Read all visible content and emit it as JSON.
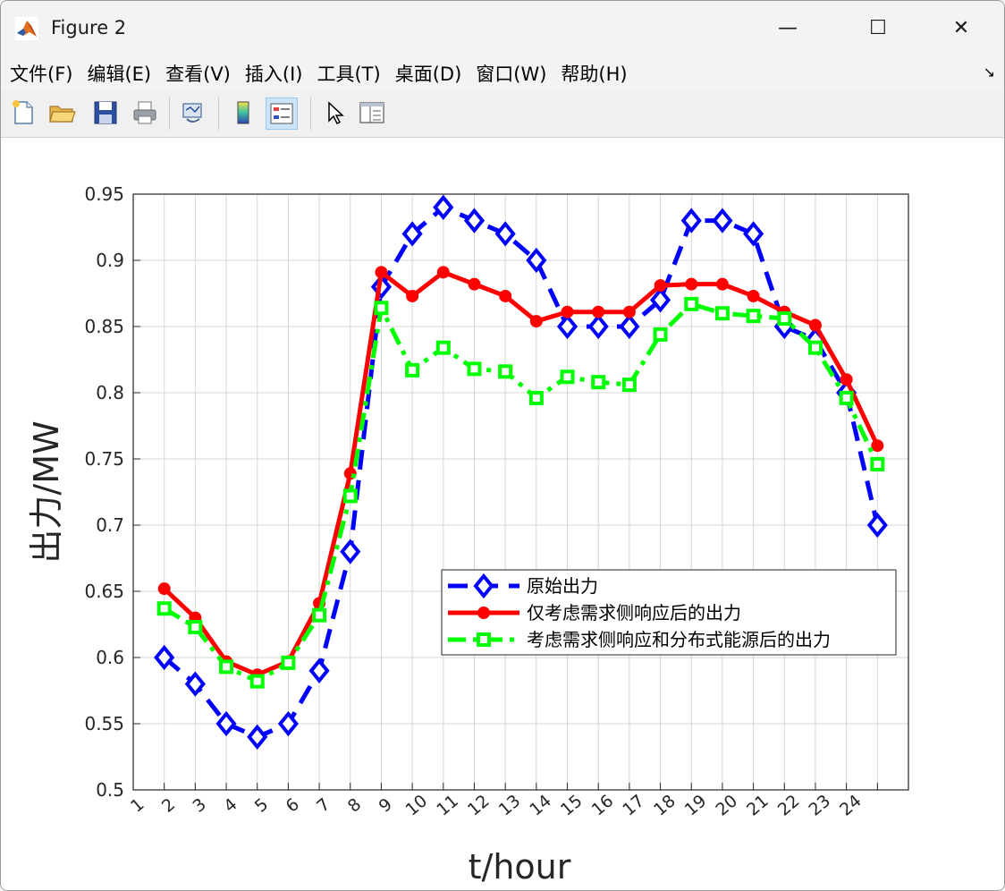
{
  "window": {
    "title": "Figure 2",
    "controls": {
      "minimize": "—",
      "maximize": "☐",
      "close": "✕"
    }
  },
  "menu": [
    {
      "label": "文件(F)"
    },
    {
      "label": "编辑(E)"
    },
    {
      "label": "查看(V)"
    },
    {
      "label": "插入(I)"
    },
    {
      "label": "工具(T)"
    },
    {
      "label": "桌面(D)"
    },
    {
      "label": "窗口(W)"
    },
    {
      "label": "帮助(H)"
    }
  ],
  "menu_overflow": "↘",
  "toolbar": [
    "new-file-icon",
    "open-folder-icon",
    "save-icon",
    "print-icon",
    "link-plot-icon",
    "colorbar-icon",
    "legend-icon",
    "pointer-icon",
    "property-inspector-icon"
  ],
  "chart_data": {
    "type": "line",
    "title": "",
    "xlabel": "t/hour",
    "ylabel": "出力/MW",
    "xlim": [
      0,
      25
    ],
    "ylim": [
      0.5,
      0.95
    ],
    "x_tick_values": [
      1,
      2,
      3,
      4,
      5,
      6,
      7,
      8,
      9,
      10,
      11,
      12,
      13,
      14,
      15,
      16,
      17,
      18,
      19,
      20,
      21,
      22,
      23,
      24
    ],
    "x_tick_labels": [
      "1",
      "2",
      "3",
      "4",
      "5",
      "6",
      "7",
      "8",
      "9",
      "10",
      "11",
      "12",
      "13",
      "14",
      "15",
      "16",
      "17",
      "18",
      "19",
      "20",
      "21",
      "22",
      "23",
      "24"
    ],
    "y_ticks": [
      0.5,
      0.55,
      0.6,
      0.65,
      0.7,
      0.75,
      0.8,
      0.85,
      0.9,
      0.95
    ],
    "y_tick_labels": [
      "0.5",
      "0.55",
      "0.6",
      "0.65",
      "0.7",
      "0.75",
      "0.8",
      "0.85",
      "0.9",
      "0.95"
    ],
    "grid": true,
    "legend_position": "lower-right",
    "x": [
      1,
      2,
      3,
      4,
      5,
      6,
      7,
      8,
      9,
      10,
      11,
      12,
      13,
      14,
      15,
      16,
      17,
      18,
      19,
      20,
      21,
      22,
      23,
      24
    ],
    "series": [
      {
        "name": "原始出力",
        "color": "#0000ff",
        "line": "dashed",
        "marker": "diamond",
        "values": [
          0.6,
          0.58,
          0.55,
          0.54,
          0.55,
          0.59,
          0.68,
          0.88,
          0.92,
          0.94,
          0.93,
          0.92,
          0.9,
          0.85,
          0.85,
          0.85,
          0.87,
          0.93,
          0.93,
          0.92,
          0.85,
          0.84,
          0.8,
          0.7
        ]
      },
      {
        "name": "仅考虑需求侧响应后的出力",
        "color": "#ff0000",
        "line": "solid",
        "marker": "circle",
        "values": [
          0.652,
          0.63,
          0.597,
          0.587,
          0.597,
          0.641,
          0.739,
          0.891,
          0.873,
          0.891,
          0.882,
          0.873,
          0.854,
          0.861,
          0.861,
          0.861,
          0.881,
          0.882,
          0.882,
          0.873,
          0.861,
          0.851,
          0.81,
          0.76
        ]
      },
      {
        "name": "考虑需求侧响应和分布式能源后的出力",
        "color": "#00ff00",
        "line": "dashdot",
        "marker": "square",
        "values": [
          0.637,
          0.623,
          0.593,
          0.582,
          0.596,
          0.632,
          0.722,
          0.864,
          0.817,
          0.834,
          0.818,
          0.816,
          0.796,
          0.812,
          0.808,
          0.806,
          0.844,
          0.867,
          0.86,
          0.858,
          0.856,
          0.834,
          0.796,
          0.746
        ]
      }
    ]
  }
}
